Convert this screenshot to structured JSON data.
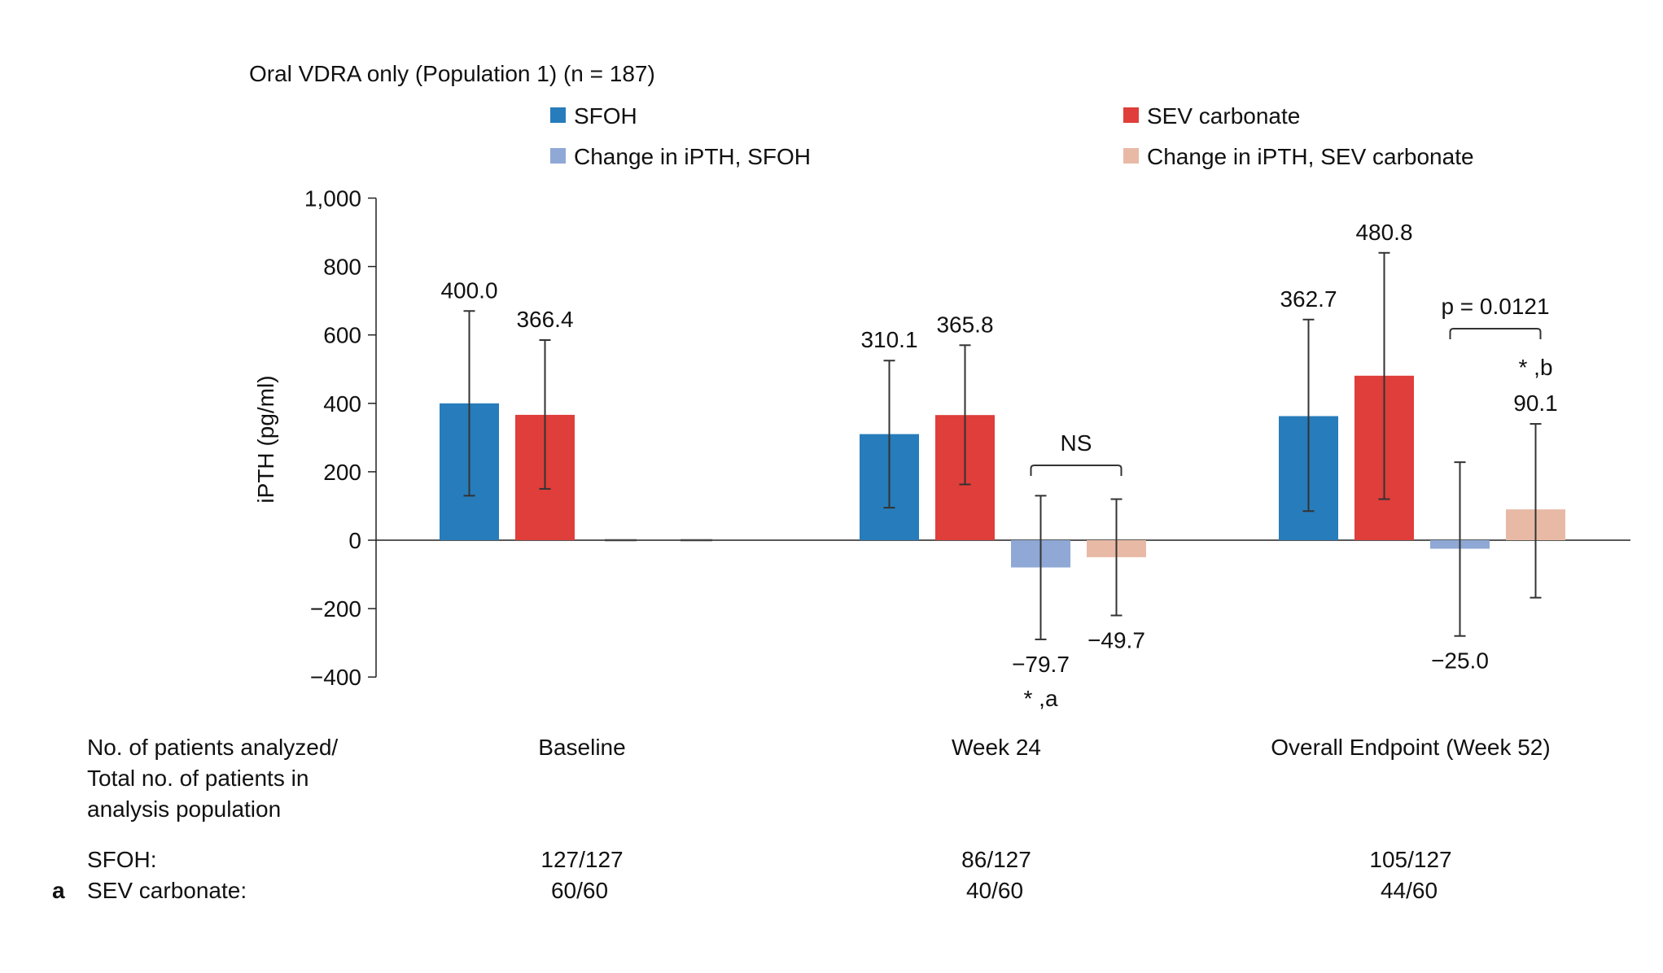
{
  "chart_data": {
    "type": "bar",
    "title": "Oral VDRA only (Population 1) (n = 187)",
    "panel_label": "a",
    "xlabel": "",
    "ylabel": "iPTH (pg/ml)",
    "ylim": [
      -400,
      1000
    ],
    "yticks": [
      1000,
      800,
      600,
      400,
      200,
      0,
      -200,
      -400
    ],
    "ytick_labels": [
      "1,000",
      "800",
      "600",
      "400",
      "200",
      "0",
      "−200",
      "−400"
    ],
    "grid": false,
    "legend_position": "top",
    "categories": [
      "Baseline",
      "Week 24",
      "Overall Endpoint (Week 52)"
    ],
    "series": [
      {
        "name": "SFOH",
        "color": "#277cbb",
        "values": [
          400.0,
          310.1,
          362.7
        ],
        "labels": [
          "400.0",
          "310.1",
          "362.7"
        ],
        "error_low": [
          130,
          95,
          85
        ],
        "error_high": [
          670,
          525,
          645
        ]
      },
      {
        "name": "SEV carbonate",
        "color": "#df3e3a",
        "values": [
          366.4,
          365.8,
          480.8
        ],
        "labels": [
          "366.4",
          "365.8",
          "480.8"
        ],
        "error_low": [
          150,
          163,
          120
        ],
        "error_high": [
          585,
          570,
          840
        ]
      },
      {
        "name": "Change in iPTH, SFOH",
        "color": "#8fa8d5",
        "values": [
          0,
          -79.7,
          -25.0
        ],
        "labels": [
          "",
          "−79.7",
          "−25.0"
        ],
        "error_low": [
          null,
          -290,
          -280
        ],
        "error_high": [
          null,
          130,
          228
        ]
      },
      {
        "name": "Change in iPTH, SEV carbonate",
        "color": "#e8baa6",
        "values": [
          0,
          -49.7,
          90.1
        ],
        "labels": [
          "",
          "−49.7",
          "90.1"
        ],
        "error_low": [
          null,
          -220,
          -168
        ],
        "error_high": [
          null,
          120,
          340
        ]
      }
    ],
    "annotations": [
      {
        "category": "Week 24",
        "text": "NS",
        "type": "bracket",
        "between": [
          "Change in iPTH, SFOH",
          "Change in iPTH, SEV carbonate"
        ]
      },
      {
        "category": "Week 24",
        "text": "* ,a",
        "type": "note",
        "series": "Change in iPTH, SFOH"
      },
      {
        "category": "Overall Endpoint (Week 52)",
        "text": "p = 0.0121",
        "type": "bracket",
        "between": [
          "Change in iPTH, SFOH",
          "Change in iPTH, SEV carbonate"
        ]
      },
      {
        "category": "Overall Endpoint (Week 52)",
        "text": "* ,b",
        "type": "note",
        "series": "Change in iPTH, SEV carbonate"
      }
    ]
  },
  "patient_table": {
    "header_lines": [
      "No. of patients analyzed/",
      "Total no. of patients in",
      "analysis population"
    ],
    "columns": [
      "Baseline",
      "Week 24",
      "Overall Endpoint (Week 52)"
    ],
    "rows": [
      {
        "label": "SFOH:",
        "values": [
          "127/127",
          "86/127",
          "105/127"
        ]
      },
      {
        "label": "SEV carbonate:",
        "values": [
          "60/60",
          "40/60",
          "44/60"
        ]
      }
    ]
  }
}
